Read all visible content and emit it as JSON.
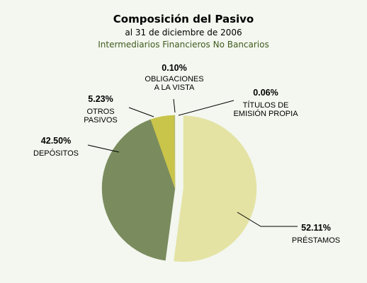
{
  "chart_data": {
    "type": "pie",
    "title": "Composición del Pasivo",
    "subtitle": "al 31 de diciembre de 2006",
    "subtitle2": "Intermediarios Financieros No Bancarios",
    "slices": [
      {
        "label_lines": [
          "PRÉSTAMOS"
        ],
        "value": 52.11,
        "value_label": "52.11%",
        "color": "#e4e3a4"
      },
      {
        "label_lines": [
          "DEPÓSITOS"
        ],
        "value": 42.5,
        "value_label": "42.50%",
        "color": "#7a8c5e"
      },
      {
        "label_lines": [
          "OTROS",
          "PASIVOS"
        ],
        "value": 5.23,
        "value_label": "5.23%",
        "color": "#c9c44a"
      },
      {
        "label_lines": [
          "OBLIGACIONES",
          "A LA VISTA"
        ],
        "value": 0.1,
        "value_label": "0.10%",
        "color": "#8a9a64"
      },
      {
        "label_lines": [
          "TÍTULOS DE",
          "EMISIÓN PROPIA"
        ],
        "value": 0.06,
        "value_label": "0.06%",
        "color": "#d6d68a"
      }
    ]
  }
}
